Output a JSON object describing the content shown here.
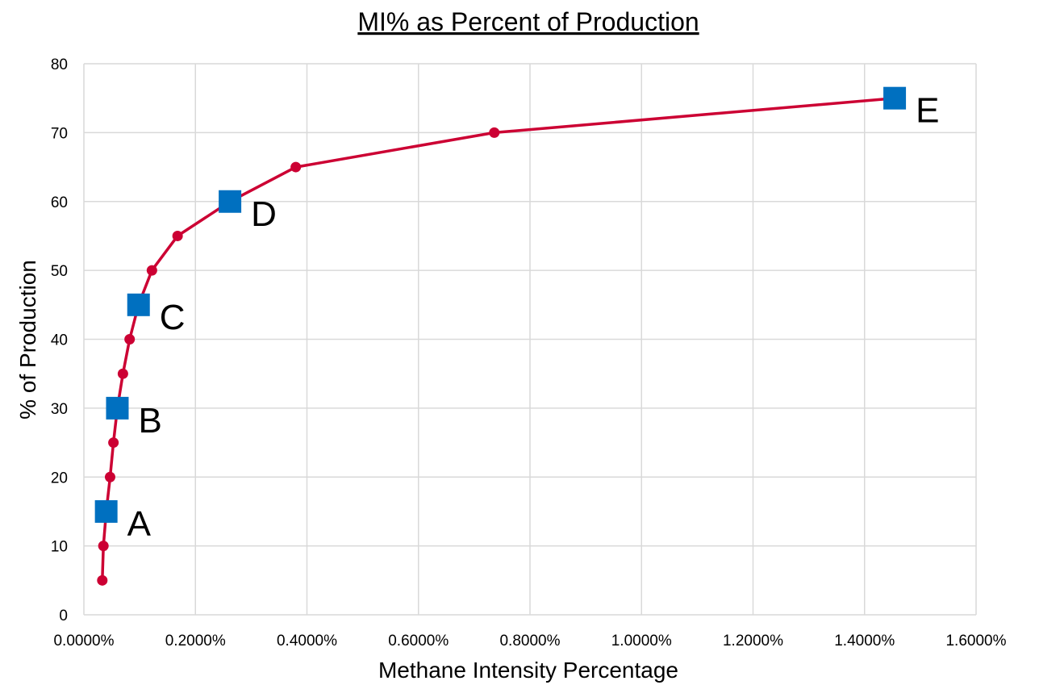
{
  "chart_data": {
    "type": "scatter",
    "title": "MI% as Percent of Production",
    "xlabel": "Methane Intensity Percentage",
    "ylabel": "% of Production",
    "xlim": [
      0,
      1.6
    ],
    "ylim": [
      0,
      80
    ],
    "x_ticks": [
      0,
      0.2,
      0.4,
      0.6,
      0.8,
      1.0,
      1.2,
      1.4,
      1.6
    ],
    "x_tick_labels": [
      "0.0000%",
      "0.2000%",
      "0.4000%",
      "0.6000%",
      "0.8000%",
      "1.0000%",
      "1.2000%",
      "1.4000%",
      "1.6000%"
    ],
    "y_ticks": [
      0,
      10,
      20,
      30,
      40,
      50,
      60,
      70,
      80
    ],
    "y_tick_labels": [
      "0",
      "10",
      "20",
      "30",
      "40",
      "50",
      "60",
      "70",
      "80"
    ],
    "grid": true,
    "legend": "none",
    "series": [
      {
        "style": "line-with-circle-markers",
        "color": "#cc0033",
        "points": [
          {
            "x": 0.033,
            "y": 5
          },
          {
            "x": 0.035,
            "y": 10
          },
          {
            "x": 0.04,
            "y": 15
          },
          {
            "x": 0.047,
            "y": 20
          },
          {
            "x": 0.053,
            "y": 25
          },
          {
            "x": 0.06,
            "y": 30
          },
          {
            "x": 0.07,
            "y": 35
          },
          {
            "x": 0.082,
            "y": 40
          },
          {
            "x": 0.098,
            "y": 45
          },
          {
            "x": 0.122,
            "y": 50
          },
          {
            "x": 0.168,
            "y": 55
          },
          {
            "x": 0.262,
            "y": 60
          },
          {
            "x": 0.38,
            "y": 65
          },
          {
            "x": 0.736,
            "y": 70
          },
          {
            "x": 1.454,
            "y": 75
          }
        ]
      },
      {
        "style": "square-markers",
        "color": "#0070c0",
        "points": [
          {
            "x": 0.04,
            "y": 15,
            "label": "A"
          },
          {
            "x": 0.06,
            "y": 30,
            "label": "B"
          },
          {
            "x": 0.098,
            "y": 45,
            "label": "C"
          },
          {
            "x": 0.262,
            "y": 60,
            "label": "D"
          },
          {
            "x": 1.454,
            "y": 75,
            "label": "E"
          }
        ]
      }
    ]
  }
}
